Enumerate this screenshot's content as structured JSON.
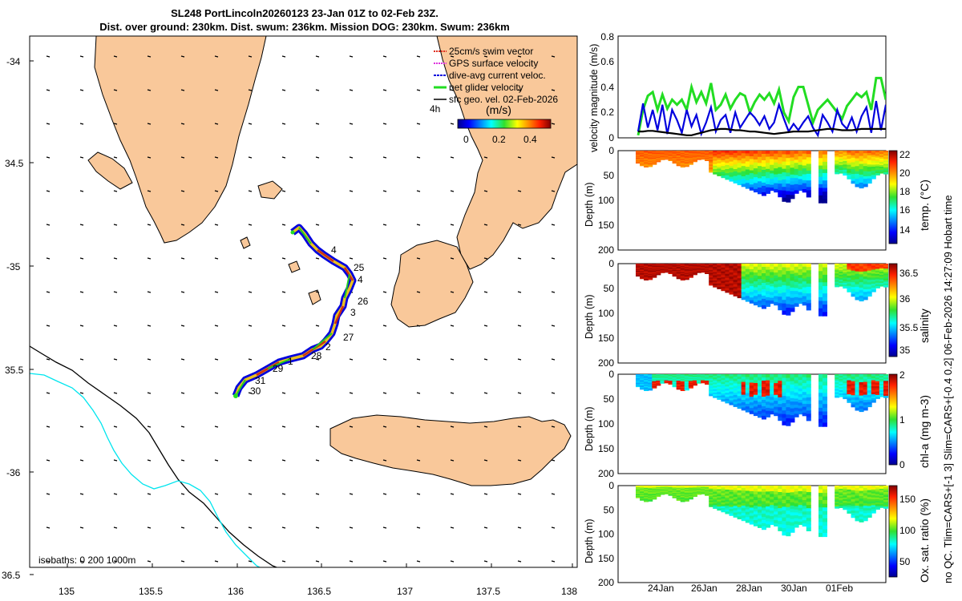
{
  "title": {
    "line1": "SL248 PortLincoln20260123 23-Jan 01Z to 02-Feb 23Z.",
    "line2": "Dist. over ground: 230km. Dist. swum: 236km. Mission DOG: 230km. Swum: 236km"
  },
  "colors": {
    "land": "#f9c89a",
    "deep_isobath": "#000000",
    "shallow_isobath": "#00e5ee",
    "net_velocity": "#22dd22",
    "dive_avg": "#0000dd",
    "sfc_geo": "#000000"
  },
  "map": {
    "legend": [
      {
        "label": "25cm/s swim vector",
        "color": "#e03020"
      },
      {
        "label": "GPS surface velocity",
        "color": "#dd33dd"
      },
      {
        "label": "dive-avg current veloc.",
        "color": "#0000dd"
      },
      {
        "label": "net glider velocity",
        "color": "#22dd22"
      },
      {
        "label": "sfc geo. vel. 02-Feb-2026",
        "color": "#000000"
      }
    ],
    "legend_extra": "4h",
    "colorbar_unit": "(m/s)",
    "colorbar_ticks": [
      "0",
      "0.2",
      "0.4"
    ],
    "isobaths_label": "isobaths: 0   200  1000m",
    "lat_ticks": [
      "-34",
      "34.5",
      "-35",
      "35.5",
      "-36",
      "36.5"
    ],
    "lon_ticks": [
      "135",
      "135.5",
      "136",
      "136.5",
      "137",
      "137.5",
      "138"
    ],
    "day_labels": [
      "4",
      "25",
      "4",
      "26",
      "3",
      "27",
      "2",
      "28",
      "1",
      "29",
      "31",
      "30"
    ]
  },
  "chart_data": [
    {
      "type": "line",
      "title": "",
      "ylabel": "velocity magnitude (m/s)",
      "ylim": [
        0,
        0.8
      ],
      "y_ticks": [
        "0",
        "0.2",
        "0.4",
        "0.6",
        "0.8"
      ],
      "x_ticks": [
        "24Jan",
        "26Jan",
        "28Jan",
        "30Jan",
        "01Feb"
      ],
      "series": [
        {
          "name": "net glider velocity",
          "color": "#22dd22",
          "values": [
            0.02,
            0.22,
            0.33,
            0.36,
            0.22,
            0.34,
            0.23,
            0.3,
            0.26,
            0.3,
            0.22,
            0.4,
            0.28,
            0.36,
            0.27,
            0.43,
            0.22,
            0.26,
            0.34,
            0.23,
            0.3,
            0.35,
            0.33,
            0.2,
            0.28,
            0.34,
            0.3,
            0.35,
            0.27,
            0.38,
            0.2,
            0.13,
            0.32,
            0.4,
            0.4,
            0.26,
            0.12,
            0.22,
            0.26,
            0.3,
            0.25,
            0.2,
            0.15,
            0.25,
            0.3,
            0.35,
            0.32,
            0.36,
            0.22,
            0.47,
            0.47,
            0.3
          ]
        },
        {
          "name": "dive-avg current veloc.",
          "color": "#0000dd",
          "values": [
            0.05,
            0.27,
            0.08,
            0.22,
            0.06,
            0.26,
            0.03,
            0.22,
            0.14,
            0.04,
            0.22,
            0.09,
            0.18,
            0.03,
            0.12,
            0.24,
            0.05,
            0.14,
            0.18,
            0.04,
            0.2,
            0.08,
            0.14,
            0.2,
            0.16,
            0.1,
            0.17,
            0.07,
            0.12,
            0.26,
            0.15,
            0.05,
            0.11,
            0.06,
            0.12,
            0.17,
            0.08,
            0.02,
            0.18,
            0.12,
            0.05,
            0.22,
            0.11,
            0.07,
            0.16,
            0.05,
            0.17,
            0.24,
            0.04,
            0.29,
            0.06,
            0.26
          ]
        },
        {
          "name": "sfc geo. vel.",
          "color": "#000000",
          "values": [
            0.05,
            0.05,
            0.055,
            0.055,
            0.05,
            0.045,
            0.04,
            0.035,
            0.03,
            0.025,
            0.02,
            0.02,
            0.03,
            0.04,
            0.05,
            0.06,
            0.065,
            0.07,
            0.07,
            0.065,
            0.06,
            0.06,
            0.055,
            0.05,
            0.05,
            0.045,
            0.04,
            0.035,
            0.03,
            0.035,
            0.04,
            0.045,
            0.05,
            0.05,
            0.05,
            0.05,
            0.055,
            0.06,
            0.065,
            0.07,
            0.07,
            0.065,
            0.06,
            0.06,
            0.06,
            0.065,
            0.07,
            0.07,
            0.07,
            0.07,
            0.07,
            0.07
          ]
        }
      ]
    },
    {
      "type": "heatmap",
      "ylabel": "Depth (m)",
      "ylim": [
        0,
        200
      ],
      "y_ticks": [
        "0",
        "50",
        "100",
        "150",
        "200"
      ],
      "colorbar_label": "temp. (°C)",
      "colorbar_ticks": [
        "14",
        "16",
        "18",
        "20",
        "22"
      ],
      "range": [
        13,
        22.5
      ]
    },
    {
      "type": "heatmap",
      "ylabel": "Depth (m)",
      "ylim": [
        0,
        200
      ],
      "y_ticks": [
        "0",
        "50",
        "100",
        "150",
        "200"
      ],
      "colorbar_label": "salinity",
      "colorbar_ticks": [
        "35",
        "35.5",
        "36",
        "36.5"
      ],
      "range": [
        34.9,
        36.7
      ]
    },
    {
      "type": "heatmap",
      "ylabel": "Depth (m)",
      "ylim": [
        0,
        200
      ],
      "y_ticks": [
        "0",
        "50",
        "100",
        "150",
        "200"
      ],
      "colorbar_label": "chl-a (mg m-3)",
      "colorbar_ticks": [
        "0",
        "1",
        "2"
      ],
      "range": [
        0,
        2
      ]
    },
    {
      "type": "heatmap",
      "ylabel": "Depth (m)",
      "ylim": [
        0,
        200
      ],
      "y_ticks": [
        "0",
        "50",
        "100",
        "150",
        "200"
      ],
      "x_ticks": [
        "24Jan",
        "26Jan",
        "28Jan",
        "30Jan",
        "01Feb"
      ],
      "colorbar_label": "Ox. sat. ratio (%)",
      "colorbar_ticks": [
        "50",
        "100",
        "150"
      ],
      "range": [
        20,
        175
      ]
    }
  ],
  "side_label": "no QC. Tlim=CARS+[-1 3] Slim=CARS+[-0.4 0.2] 06-Feb-2026 14:27:09 Hobart time"
}
